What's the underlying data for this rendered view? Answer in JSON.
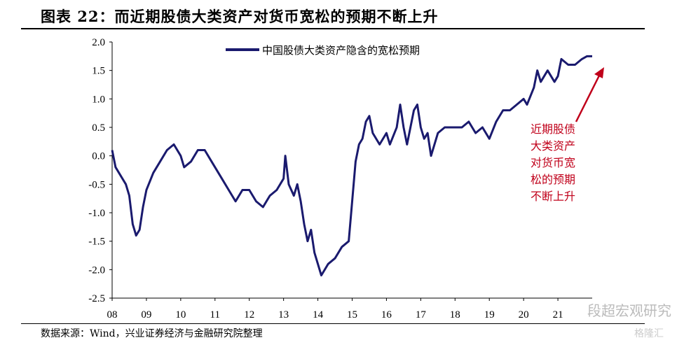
{
  "title": "图表 22：而近期股债大类资产对货币宽松的预期不断上升",
  "source": "数据来源：Wind，兴业证券经济与金融研究院整理",
  "watermark": "段超宏观研究",
  "watermark2": "格隆汇",
  "colors": {
    "series": "#1a1a6e",
    "annotation": "#c0001a"
  },
  "chart_data": {
    "type": "line",
    "title": "",
    "ylim": [
      -2.5,
      2.0
    ],
    "yticks": [
      2.0,
      1.5,
      1.0,
      0.5,
      0.0,
      -0.5,
      -1.0,
      -1.5,
      -2.0,
      -2.5
    ],
    "ytick_labels": [
      "2.0",
      "1.5",
      "1.0",
      "0.5",
      "0.0",
      "-0.5",
      "-1.0",
      "-1.5",
      "-2.0",
      "-2.5"
    ],
    "xlim": [
      2008,
      2022
    ],
    "xticks": [
      2008,
      2009,
      2010,
      2011,
      2012,
      2013,
      2014,
      2015,
      2016,
      2017,
      2018,
      2019,
      2020,
      2021
    ],
    "xtick_labels": [
      "08",
      "09",
      "10",
      "11",
      "12",
      "13",
      "14",
      "15",
      "16",
      "17",
      "18",
      "19",
      "20",
      "21"
    ],
    "legend": "中国股债大类资产隐含的宽松预期",
    "legend_position": "top-center",
    "annotation": [
      "近期股债",
      "大类资产",
      "对货币宽",
      "松的预期",
      "不断上升"
    ],
    "series": [
      {
        "name": "中国股债大类资产隐含的宽松预期",
        "x": [
          2008.0,
          2008.1,
          2008.2,
          2008.4,
          2008.5,
          2008.6,
          2008.7,
          2008.8,
          2008.9,
          2009.0,
          2009.2,
          2009.4,
          2009.6,
          2009.8,
          2010.0,
          2010.1,
          2010.3,
          2010.5,
          2010.7,
          2010.9,
          2011.0,
          2011.2,
          2011.4,
          2011.6,
          2011.8,
          2012.0,
          2012.2,
          2012.4,
          2012.6,
          2012.8,
          2013.0,
          2013.05,
          2013.15,
          2013.3,
          2013.4,
          2013.5,
          2013.6,
          2013.7,
          2013.8,
          2013.9,
          2014.0,
          2014.1,
          2014.3,
          2014.5,
          2014.7,
          2014.9,
          2015.0,
          2015.1,
          2015.2,
          2015.3,
          2015.4,
          2015.5,
          2015.6,
          2015.8,
          2016.0,
          2016.1,
          2016.3,
          2016.4,
          2016.5,
          2016.6,
          2016.8,
          2016.9,
          2017.0,
          2017.1,
          2017.2,
          2017.3,
          2017.5,
          2017.7,
          2018.0,
          2018.2,
          2018.4,
          2018.6,
          2018.8,
          2019.0,
          2019.2,
          2019.4,
          2019.6,
          2019.8,
          2020.0,
          2020.1,
          2020.3,
          2020.4,
          2020.5,
          2020.7,
          2020.9,
          2021.0,
          2021.1,
          2021.3,
          2021.5,
          2021.7,
          2021.85,
          2022.0
        ],
        "y": [
          0.1,
          -0.2,
          -0.3,
          -0.5,
          -0.7,
          -1.2,
          -1.4,
          -1.3,
          -0.9,
          -0.6,
          -0.3,
          -0.1,
          0.1,
          0.2,
          0.0,
          -0.2,
          -0.1,
          0.1,
          0.1,
          -0.1,
          -0.2,
          -0.4,
          -0.6,
          -0.8,
          -0.6,
          -0.6,
          -0.8,
          -0.9,
          -0.7,
          -0.6,
          -0.4,
          0.0,
          -0.5,
          -0.7,
          -0.5,
          -0.8,
          -1.2,
          -1.5,
          -1.3,
          -1.7,
          -1.9,
          -2.1,
          -1.9,
          -1.8,
          -1.6,
          -1.5,
          -0.8,
          -0.1,
          0.2,
          0.3,
          0.6,
          0.7,
          0.4,
          0.2,
          0.4,
          0.2,
          0.5,
          0.9,
          0.5,
          0.2,
          0.8,
          0.9,
          0.5,
          0.3,
          0.4,
          0.0,
          0.4,
          0.5,
          0.5,
          0.5,
          0.6,
          0.4,
          0.5,
          0.3,
          0.6,
          0.8,
          0.8,
          0.9,
          1.0,
          0.9,
          1.2,
          1.5,
          1.3,
          1.5,
          1.3,
          1.4,
          1.7,
          1.6,
          1.6,
          1.7,
          1.75,
          1.75
        ]
      }
    ]
  }
}
